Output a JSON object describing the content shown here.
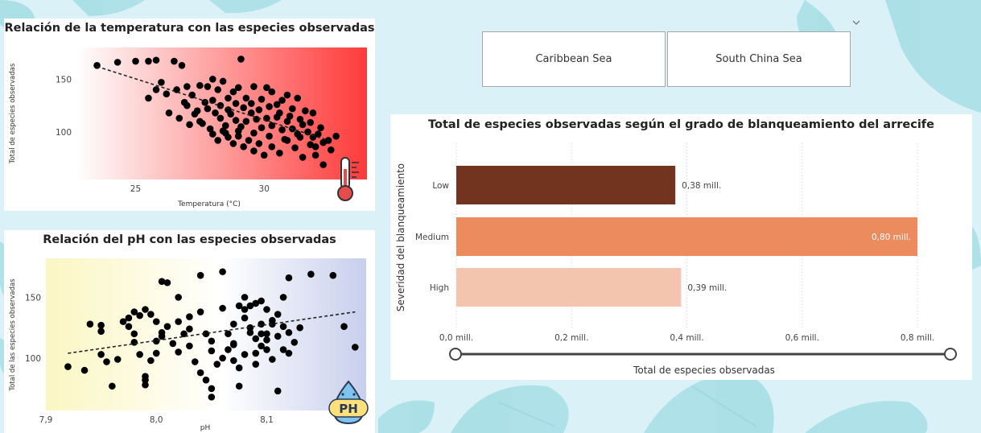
{
  "slicer": {
    "options": [
      "Caribbean Sea",
      "South China Sea"
    ]
  },
  "chart_data": [
    {
      "type": "scatter",
      "title": "Relación de la temperatura con las especies observadas",
      "xlabel": "Temperatura (°C)",
      "ylabel": "Total de especies observadas",
      "xlim": [
        22.7,
        34.0
      ],
      "ylim": [
        55,
        180
      ],
      "xticks": [
        "25",
        "30"
      ],
      "yticks": [
        "100",
        "150"
      ],
      "trendline": {
        "x0": 23.5,
        "y0": 162,
        "x1": 32.5,
        "y1": 92
      },
      "background": "gradient white to #ff3b3b",
      "icon": "thermometer-icon",
      "points": [
        [
          23.5,
          163
        ],
        [
          24.3,
          166
        ],
        [
          25.0,
          167
        ],
        [
          25.5,
          167
        ],
        [
          25.8,
          168
        ],
        [
          26.5,
          167
        ],
        [
          26.8,
          163
        ],
        [
          27.0,
          143
        ],
        [
          29.1,
          169
        ],
        [
          26.0,
          147
        ],
        [
          25.8,
          140
        ],
        [
          25.5,
          132
        ],
        [
          26.2,
          136
        ],
        [
          26.6,
          140
        ],
        [
          26.9,
          128
        ],
        [
          27.2,
          135
        ],
        [
          27.5,
          144
        ],
        [
          27.8,
          143
        ],
        [
          28.0,
          150
        ],
        [
          28.2,
          140
        ],
        [
          28.4,
          148
        ],
        [
          28.6,
          132
        ],
        [
          28.8,
          138
        ],
        [
          29.0,
          142
        ],
        [
          29.3,
          132
        ],
        [
          29.6,
          143
        ],
        [
          29.9,
          131
        ],
        [
          30.1,
          142
        ],
        [
          30.3,
          138
        ],
        [
          30.5,
          126
        ],
        [
          30.7,
          130
        ],
        [
          30.9,
          135
        ],
        [
          31.1,
          122
        ],
        [
          31.3,
          132
        ],
        [
          31.6,
          120
        ],
        [
          31.9,
          118
        ],
        [
          27.0,
          125
        ],
        [
          27.3,
          117
        ],
        [
          27.5,
          110
        ],
        [
          27.8,
          122
        ],
        [
          28.1,
          118
        ],
        [
          28.3,
          113
        ],
        [
          28.5,
          106
        ],
        [
          28.7,
          117
        ],
        [
          28.9,
          111
        ],
        [
          29.1,
          105
        ],
        [
          29.3,
          110
        ],
        [
          29.5,
          118
        ],
        [
          29.7,
          112
        ],
        [
          29.9,
          104
        ],
        [
          30.1,
          113
        ],
        [
          30.3,
          106
        ],
        [
          30.5,
          114
        ],
        [
          30.7,
          102
        ],
        [
          30.9,
          110
        ],
        [
          31.1,
          103
        ],
        [
          31.3,
          98
        ],
        [
          31.5,
          107
        ],
        [
          31.7,
          100
        ],
        [
          31.9,
          95
        ],
        [
          32.1,
          98
        ],
        [
          32.3,
          90
        ],
        [
          32.5,
          92
        ],
        [
          28.0,
          98
        ],
        [
          28.2,
          92
        ],
        [
          28.4,
          101
        ],
        [
          28.6,
          95
        ],
        [
          28.8,
          89
        ],
        [
          29.0,
          96
        ],
        [
          29.2,
          86
        ],
        [
          29.4,
          92
        ],
        [
          29.6,
          82
        ],
        [
          29.8,
          89
        ],
        [
          30.0,
          78
        ],
        [
          30.3,
          86
        ],
        [
          30.6,
          80
        ],
        [
          30.9,
          92
        ],
        [
          31.2,
          85
        ],
        [
          31.5,
          76
        ],
        [
          31.8,
          88
        ],
        [
          32.0,
          78
        ],
        [
          32.3,
          69
        ],
        [
          32.8,
          96
        ],
        [
          26.3,
          118
        ],
        [
          26.7,
          113
        ],
        [
          27.1,
          107
        ],
        [
          27.4,
          120
        ],
        [
          27.7,
          128
        ],
        [
          28.0,
          130
        ],
        [
          28.3,
          125
        ],
        [
          28.6,
          121
        ],
        [
          28.9,
          127
        ],
        [
          29.2,
          123
        ],
        [
          29.5,
          127
        ],
        [
          29.8,
          121
        ],
        [
          30.2,
          124
        ],
        [
          30.6,
          118
        ],
        [
          31.0,
          115
        ],
        [
          31.4,
          112
        ],
        [
          31.8,
          109
        ],
        [
          32.2,
          104
        ],
        [
          27.9,
          103
        ],
        [
          28.5,
          99
        ],
        [
          29.0,
          101
        ],
        [
          29.6,
          99
        ],
        [
          30.2,
          96
        ],
        [
          30.8,
          93
        ],
        [
          31.4,
          95
        ],
        [
          32.0,
          86
        ],
        [
          32.6,
          83
        ],
        [
          27.6,
          108
        ]
      ]
    },
    {
      "type": "scatter",
      "title": "Relación del pH con las especies observadas",
      "xlabel": "pH",
      "ylabel": "Total de las especies observadas",
      "xlim": [
        7.9,
        8.19
      ],
      "ylim": [
        57,
        182
      ],
      "xticks": [
        "7,9",
        "8,0",
        "8,1"
      ],
      "yticks": [
        "100",
        "150"
      ],
      "trendline": {
        "x0": 7.92,
        "y0": 104,
        "x1": 8.18,
        "y1": 138
      },
      "background": "gradient #fbf7c4 to #c9cfeb",
      "icon": "ph-drop-icon",
      "points": [
        [
          7.92,
          93
        ],
        [
          7.935,
          90
        ],
        [
          7.94,
          128
        ],
        [
          7.95,
          127
        ],
        [
          7.95,
          122
        ],
        [
          7.95,
          103
        ],
        [
          7.955,
          97
        ],
        [
          7.96,
          77
        ],
        [
          7.965,
          99
        ],
        [
          7.97,
          130
        ],
        [
          7.975,
          126
        ],
        [
          7.98,
          120
        ],
        [
          7.98,
          113
        ],
        [
          7.985,
          103
        ],
        [
          7.99,
          85
        ],
        [
          7.99,
          82
        ],
        [
          7.99,
          78
        ],
        [
          7.995,
          98
        ],
        [
          7.975,
          133
        ],
        [
          7.98,
          138
        ],
        [
          7.985,
          135
        ],
        [
          7.99,
          140
        ],
        [
          7.995,
          136
        ],
        [
          8.0,
          130
        ],
        [
          8.005,
          121
        ],
        [
          8.0,
          114
        ],
        [
          8.0,
          104
        ],
        [
          8.005,
          118
        ],
        [
          8.01,
          126
        ],
        [
          8.015,
          112
        ],
        [
          8.02,
          130
        ],
        [
          8.02,
          105
        ],
        [
          8.025,
          120
        ],
        [
          8.03,
          134
        ],
        [
          8.03,
          110
        ],
        [
          8.035,
          97
        ],
        [
          8.005,
          163
        ],
        [
          8.01,
          162
        ],
        [
          8.02,
          150
        ],
        [
          8.04,
          168
        ],
        [
          8.04,
          138
        ],
        [
          8.045,
          120
        ],
        [
          8.05,
          114
        ],
        [
          8.05,
          106
        ],
        [
          8.055,
          95
        ],
        [
          8.06,
          171
        ],
        [
          8.06,
          141
        ],
        [
          8.065,
          120
        ],
        [
          8.07,
          128
        ],
        [
          8.07,
          111
        ],
        [
          8.07,
          98
        ],
        [
          8.075,
          92
        ],
        [
          8.075,
          77
        ],
        [
          8.08,
          140
        ],
        [
          8.08,
          133
        ],
        [
          8.085,
          121
        ],
        [
          8.09,
          116
        ],
        [
          8.09,
          104
        ],
        [
          8.095,
          128
        ],
        [
          8.1,
          120
        ],
        [
          8.1,
          107
        ],
        [
          8.105,
          131
        ],
        [
          8.105,
          99
        ],
        [
          8.08,
          150
        ],
        [
          8.085,
          143
        ],
        [
          8.09,
          145
        ],
        [
          8.095,
          147
        ],
        [
          8.1,
          140
        ],
        [
          8.11,
          136
        ],
        [
          8.115,
          126
        ],
        [
          8.12,
          121
        ],
        [
          8.125,
          113
        ],
        [
          8.04,
          88
        ],
        [
          8.045,
          82
        ],
        [
          8.05,
          75
        ],
        [
          8.05,
          68
        ],
        [
          8.06,
          100
        ],
        [
          8.065,
          107
        ],
        [
          8.07,
          112
        ],
        [
          8.08,
          103
        ],
        [
          8.09,
          95
        ],
        [
          8.095,
          110
        ],
        [
          8.1,
          115
        ],
        [
          8.11,
          118
        ],
        [
          8.115,
          107
        ],
        [
          8.12,
          104
        ],
        [
          8.13,
          125
        ],
        [
          8.14,
          169
        ],
        [
          8.12,
          166
        ],
        [
          8.16,
          168
        ],
        [
          8.17,
          126
        ],
        [
          8.18,
          109
        ],
        [
          8.11,
          73
        ],
        [
          8.115,
          150
        ],
        [
          8.03,
          124
        ],
        [
          8.075,
          143
        ],
        [
          8.085,
          125
        ],
        [
          8.095,
          120
        ],
        [
          8.105,
          128
        ]
      ]
    },
    {
      "type": "bar",
      "orientation": "horizontal",
      "title": "Total de especies observadas según el grado de blanqueamiento del arrecife",
      "xlabel": "Total de especies observadas",
      "ylabel": "Severidad del blanqueamiento",
      "categories": [
        "Low",
        "Medium",
        "High"
      ],
      "values": [
        0.38,
        0.8,
        0.39
      ],
      "data_labels": [
        "0,38 mill.",
        "0,80 mill.",
        "0,39 mill."
      ],
      "colors": [
        "#72341f",
        "#ec8b5e",
        "#f3c4ae"
      ],
      "xlim": [
        0,
        0.8
      ],
      "xticks": [
        0,
        0.2,
        0.4,
        0.6,
        0.8
      ],
      "xtick_labels": [
        "0,0 mill.",
        "0,2 mill.",
        "0,4 mill.",
        "0,6 mill.",
        "0,8 mill."
      ],
      "grid": true
    }
  ]
}
